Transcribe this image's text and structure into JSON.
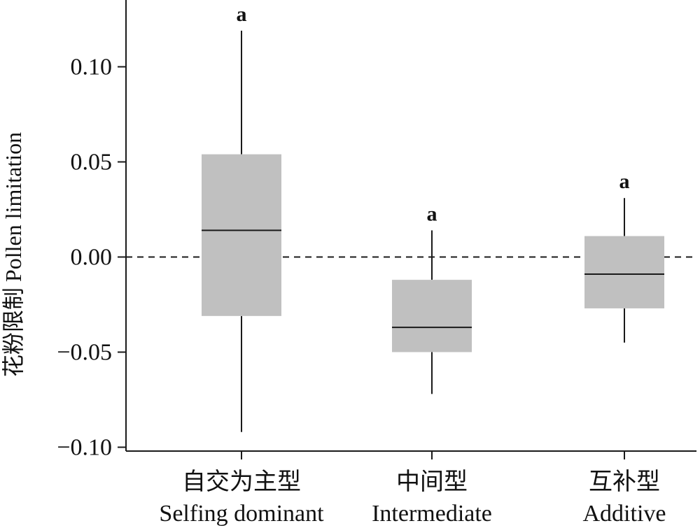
{
  "chart_data": {
    "type": "box",
    "title": "",
    "xlabel": "",
    "ylabel": "花粉限制 Pollen limitation",
    "ylim": [
      -0.105,
      0.135
    ],
    "yticks": [
      0.1,
      0.05,
      0.0,
      -0.05,
      -0.1
    ],
    "ytick_labels": [
      "0.10",
      "0.05",
      "0.00",
      "−0.05",
      "−0.10"
    ],
    "reference_line": {
      "y": 0.0,
      "style": "dashed"
    },
    "grid": false,
    "legend": "none",
    "box_color": "#c0c0c0",
    "line_color": "#1a1a1a",
    "categories": [
      {
        "label_cn": "自交为主型",
        "label_en": "Selfing dominant"
      },
      {
        "label_cn": "中间型",
        "label_en": "Intermediate"
      },
      {
        "label_cn": "互补型",
        "label_en": "Additive"
      }
    ],
    "boxes": [
      {
        "whisker_low": -0.092,
        "q1": -0.031,
        "median": 0.014,
        "q3": 0.054,
        "whisker_high": 0.119,
        "significance": "a"
      },
      {
        "whisker_low": -0.072,
        "q1": -0.05,
        "median": -0.037,
        "q3": -0.012,
        "whisker_high": 0.014,
        "significance": "a"
      },
      {
        "whisker_low": -0.045,
        "q1": -0.027,
        "median": -0.009,
        "q3": 0.011,
        "whisker_high": 0.031,
        "significance": "a"
      }
    ]
  }
}
